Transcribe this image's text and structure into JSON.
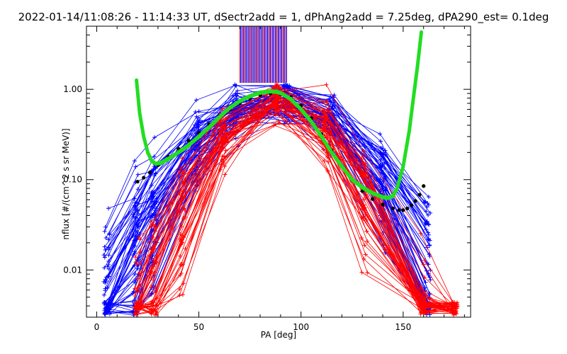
{
  "chart_data": {
    "type": "line",
    "title": "2022-01-14/11:08:26 - 11:14:33 UT, dSectr2add = 1, dPhAng2add = 7.25deg, dPA290_est=    0.1deg",
    "xlabel": "PA [deg]",
    "ylabel": "nflux [#/(cm^2 s sr MeV)]",
    "xlim": [
      -5,
      183
    ],
    "ylim": [
      0.003,
      5
    ],
    "yscale": "log",
    "xticks": [
      0,
      50,
      100,
      150
    ],
    "xtick_labels": [
      "0",
      "50",
      "100",
      "150"
    ],
    "yticks": [
      0.01,
      0.1,
      1
    ],
    "ytick_labels": [
      "0.01",
      "0.10",
      "1.00"
    ],
    "grid": false,
    "colors": {
      "blue_traces": "#0000ff",
      "red_traces": "#ff0000",
      "fit_curve": "#22dd22",
      "model_points": "#000000"
    },
    "blue_series": {
      "name": "",
      "count": 70,
      "curve_shape": {
        "peak_pa": 88,
        "peak_flux": 0.8,
        "width_deg": 34
      }
    },
    "red_series": {
      "name": "",
      "count": 50,
      "curve_shape": {
        "peak_pa": 88,
        "peak_flux": 0.75,
        "width_deg": 26
      }
    },
    "vertical_lines": {
      "x_range": [
        70,
        93
      ],
      "count": 50,
      "y_from": 1.18,
      "y_to": 5
    },
    "green_fit": {
      "x": [
        19.5,
        21,
        23,
        25,
        27,
        29,
        32,
        35,
        40,
        45,
        50,
        55,
        60,
        65,
        70,
        75,
        80,
        85,
        88,
        90,
        95,
        100,
        105,
        110,
        115,
        120,
        125,
        130,
        135,
        140,
        143,
        145,
        147,
        150,
        153,
        155,
        157,
        159
      ],
      "y": [
        1.25,
        0.55,
        0.3,
        0.2,
        0.16,
        0.15,
        0.155,
        0.17,
        0.2,
        0.24,
        0.3,
        0.38,
        0.49,
        0.62,
        0.74,
        0.84,
        0.92,
        0.95,
        0.94,
        0.91,
        0.78,
        0.6,
        0.44,
        0.3,
        0.2,
        0.14,
        0.1,
        0.082,
        0.071,
        0.064,
        0.063,
        0.066,
        0.08,
        0.14,
        0.35,
        0.8,
        1.8,
        4.5
      ]
    },
    "black_model": {
      "x": [
        20,
        23,
        26,
        30,
        35,
        40,
        45,
        50,
        55,
        60,
        65,
        70,
        75,
        80,
        85,
        90,
        95,
        100,
        105,
        110,
        115,
        120,
        125,
        130,
        135,
        140,
        145,
        148,
        150,
        152,
        154,
        156,
        158,
        160
      ],
      "y": [
        0.095,
        0.105,
        0.12,
        0.145,
        0.18,
        0.22,
        0.27,
        0.33,
        0.41,
        0.5,
        0.6,
        0.7,
        0.79,
        0.86,
        0.9,
        0.89,
        0.82,
        0.66,
        0.48,
        0.32,
        0.21,
        0.14,
        0.098,
        0.075,
        0.061,
        0.053,
        0.048,
        0.046,
        0.046,
        0.048,
        0.052,
        0.058,
        0.068,
        0.085
      ]
    }
  }
}
